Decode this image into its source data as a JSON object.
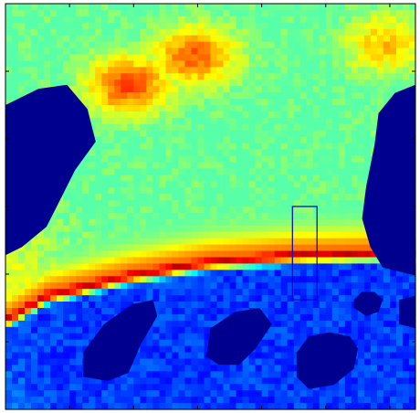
{
  "chart_data": {
    "type": "heatmap",
    "title": "",
    "xlabel": "",
    "ylabel": "",
    "colormap": "jet",
    "colormap_stops": [
      "#00008f",
      "#0000ff",
      "#00ffff",
      "#ffff00",
      "#ff0000",
      "#800000"
    ],
    "masked_color": "#00008f",
    "axis_color": "#000000",
    "selection_box_color": "#0000cc",
    "grid": false,
    "legend": "none",
    "ticks_visible": true,
    "tick_labels": [],
    "x_range": [
      0,
      1
    ],
    "y_range": [
      0,
      1
    ],
    "value_range": [
      0,
      1
    ],
    "regions": {
      "background_value": 0.46,
      "upper_hot_spots": [
        {
          "x": 0.3,
          "y": 0.2,
          "value": 0.8
        },
        {
          "x": 0.46,
          "y": 0.13,
          "value": 0.78
        },
        {
          "x": 0.93,
          "y": 0.1,
          "value": 0.68
        }
      ],
      "hot_band": {
        "centerline": [
          [
            0.0,
            0.78
          ],
          [
            0.1,
            0.72
          ],
          [
            0.3,
            0.67
          ],
          [
            0.5,
            0.635
          ],
          [
            0.7,
            0.62
          ],
          [
            0.9,
            0.615
          ],
          [
            1.0,
            0.615
          ]
        ],
        "peak_value": 0.92
      },
      "lower_region_value": 0.18
    },
    "masked_regions": [
      {
        "label": "left-hole",
        "points": [
          [
            0.0,
            0.25
          ],
          [
            0.08,
            0.21
          ],
          [
            0.15,
            0.2
          ],
          [
            0.2,
            0.26
          ],
          [
            0.22,
            0.34
          ],
          [
            0.17,
            0.41
          ],
          [
            0.13,
            0.49
          ],
          [
            0.1,
            0.55
          ],
          [
            0.04,
            0.6
          ],
          [
            0.0,
            0.62
          ]
        ]
      },
      {
        "label": "right-hole",
        "points": [
          [
            1.0,
            0.2
          ],
          [
            0.95,
            0.22
          ],
          [
            0.91,
            0.27
          ],
          [
            0.9,
            0.35
          ],
          [
            0.88,
            0.45
          ],
          [
            0.87,
            0.53
          ],
          [
            0.89,
            0.6
          ],
          [
            0.92,
            0.65
          ],
          [
            1.0,
            0.67
          ]
        ]
      },
      {
        "label": "blob-1",
        "points": [
          [
            0.19,
            0.92
          ],
          [
            0.19,
            0.86
          ],
          [
            0.24,
            0.79
          ],
          [
            0.31,
            0.74
          ],
          [
            0.36,
            0.73
          ],
          [
            0.37,
            0.77
          ],
          [
            0.33,
            0.84
          ],
          [
            0.3,
            0.91
          ],
          [
            0.25,
            0.93
          ]
        ]
      },
      {
        "label": "blob-2",
        "points": [
          [
            0.49,
            0.87
          ],
          [
            0.5,
            0.8
          ],
          [
            0.56,
            0.76
          ],
          [
            0.62,
            0.75
          ],
          [
            0.65,
            0.79
          ],
          [
            0.61,
            0.85
          ],
          [
            0.57,
            0.89
          ],
          [
            0.52,
            0.89
          ]
        ]
      },
      {
        "label": "blob-3",
        "points": [
          [
            0.71,
            0.92
          ],
          [
            0.71,
            0.86
          ],
          [
            0.74,
            0.82
          ],
          [
            0.79,
            0.81
          ],
          [
            0.84,
            0.82
          ],
          [
            0.86,
            0.85
          ],
          [
            0.85,
            0.9
          ],
          [
            0.8,
            0.94
          ],
          [
            0.74,
            0.95
          ]
        ]
      },
      {
        "label": "blob-4",
        "points": [
          [
            0.85,
            0.73
          ],
          [
            0.87,
            0.71
          ],
          [
            0.9,
            0.71
          ],
          [
            0.92,
            0.73
          ],
          [
            0.91,
            0.76
          ],
          [
            0.88,
            0.77
          ],
          [
            0.85,
            0.75
          ]
        ]
      },
      {
        "label": "blob-5",
        "points": [
          [
            0.96,
            0.73
          ],
          [
            1.0,
            0.72
          ],
          [
            1.0,
            0.8
          ],
          [
            0.96,
            0.79
          ]
        ]
      }
    ],
    "selection_box": {
      "x0": 0.7,
      "y0": 0.5,
      "x1": 0.76,
      "y1": 0.73
    }
  }
}
